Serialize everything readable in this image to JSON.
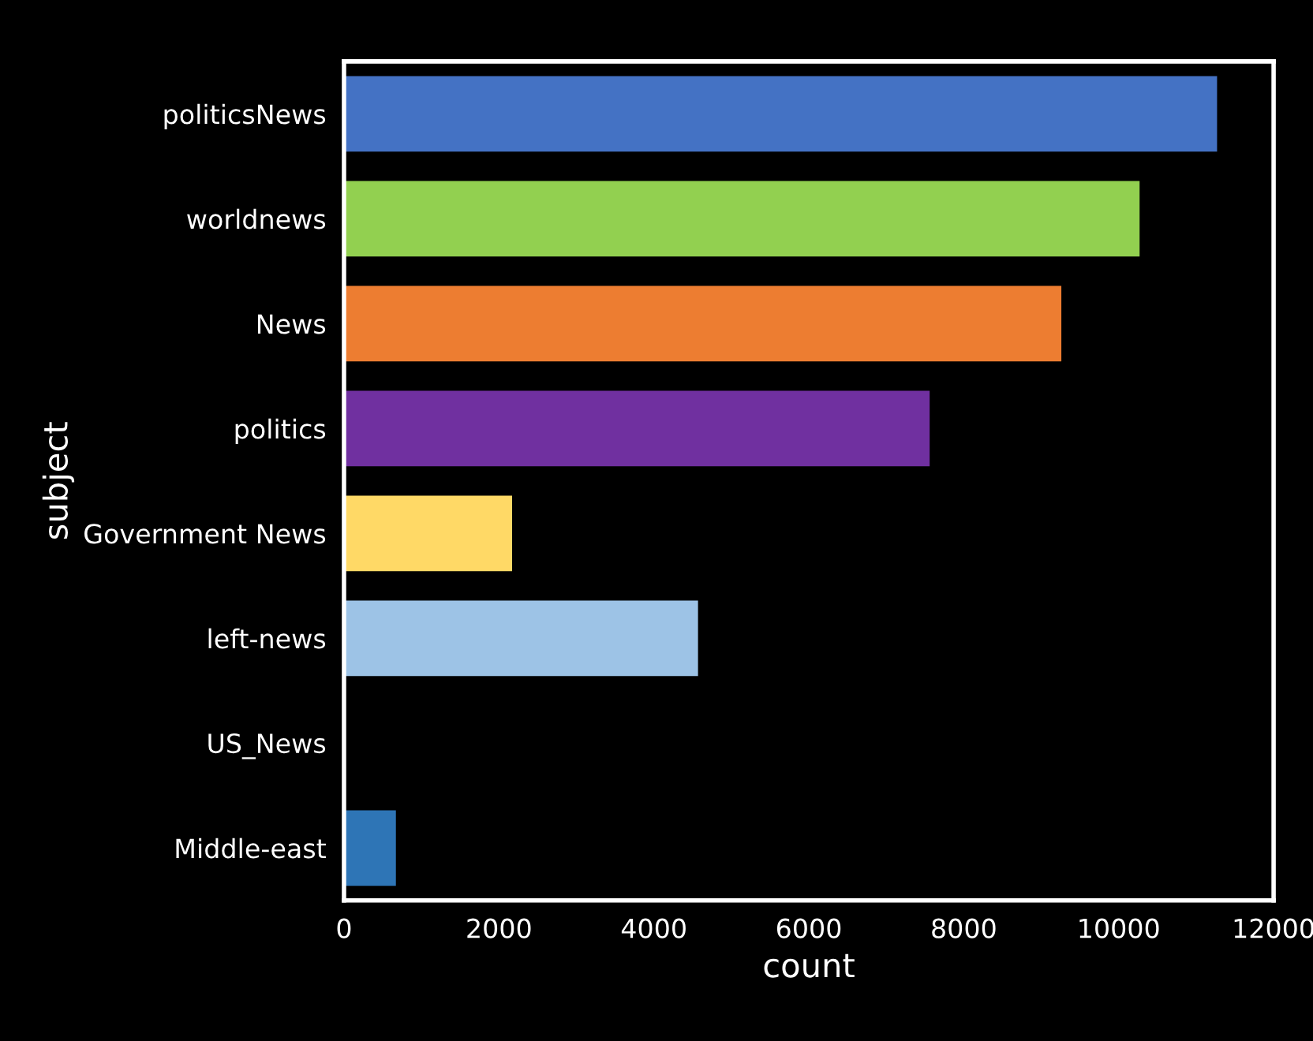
{
  "chart_data": {
    "type": "bar",
    "orientation": "horizontal",
    "xlabel": "count",
    "ylabel": "subject",
    "categories": [
      "politicsNews",
      "worldnews",
      "News",
      "politics",
      "Government News",
      "left-news",
      "US_News",
      "Middle-east"
    ],
    "values": [
      11270,
      10270,
      9260,
      7560,
      2170,
      4570,
      null,
      670
    ],
    "colors": [
      "#4472c4",
      "#92d050",
      "#ed7d31",
      "#7030a0",
      "#ffd966",
      "#9dc3e6",
      null,
      "#2e75b6"
    ],
    "xlim": [
      0,
      12000
    ],
    "xticks": [
      0,
      2000,
      4000,
      6000,
      8000,
      10000,
      12000
    ],
    "grid": false
  }
}
